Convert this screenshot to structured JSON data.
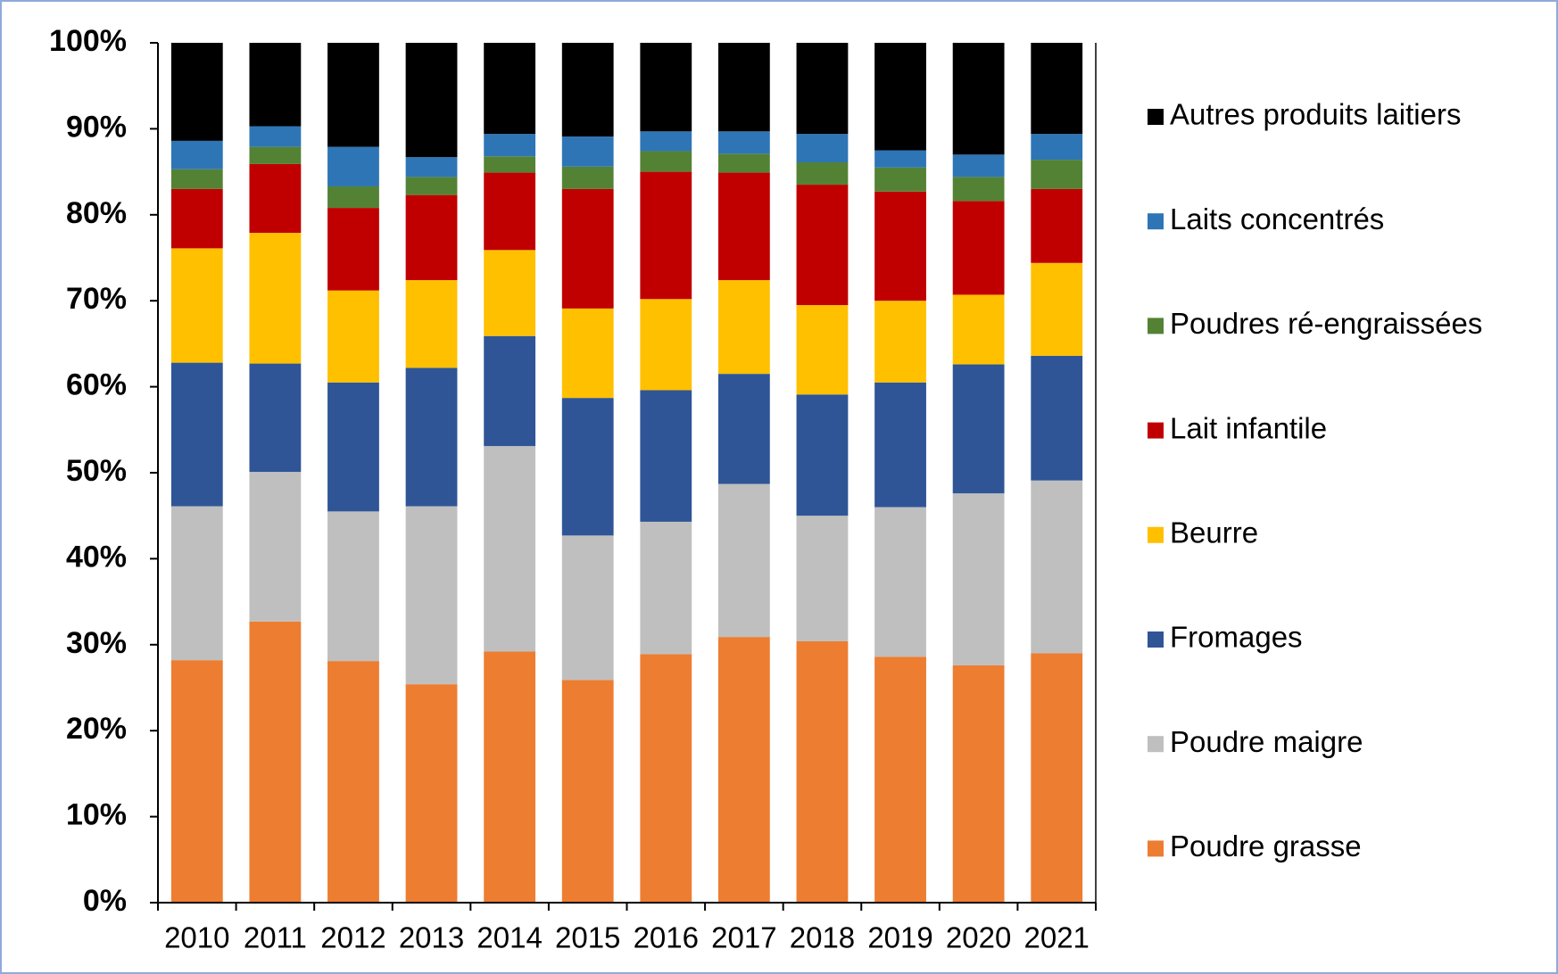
{
  "chart_data": {
    "type": "stacked_bar",
    "categories": [
      "2010",
      "2011",
      "2012",
      "2013",
      "2014",
      "2015",
      "2016",
      "2017",
      "2018",
      "2019",
      "2020",
      "2021"
    ],
    "series": [
      {
        "name": "Poudre grasse",
        "color": "#ed7d31",
        "values": [
          28.2,
          32.7,
          28.1,
          25.4,
          29.2,
          25.9,
          28.9,
          30.9,
          30.4,
          28.6,
          27.6,
          29.0
        ]
      },
      {
        "name": "Poudre maigre",
        "color": "#bfbfbf",
        "values": [
          17.9,
          17.4,
          17.4,
          20.7,
          23.9,
          16.8,
          15.4,
          17.8,
          14.6,
          17.4,
          20.0,
          20.1
        ]
      },
      {
        "name": "Fromages",
        "color": "#2f5597",
        "values": [
          16.7,
          12.6,
          15.0,
          16.1,
          12.8,
          16.0,
          15.3,
          12.8,
          14.1,
          14.5,
          15.0,
          14.5
        ]
      },
      {
        "name": "Beurre",
        "color": "#ffc000",
        "values": [
          13.3,
          15.2,
          10.7,
          10.2,
          10.0,
          10.4,
          10.6,
          10.9,
          10.4,
          9.5,
          8.1,
          10.8
        ]
      },
      {
        "name": "Lait infantile",
        "color": "#c00000",
        "values": [
          6.9,
          8.0,
          9.6,
          9.9,
          9.0,
          13.9,
          14.8,
          12.5,
          14.0,
          12.7,
          10.9,
          8.6
        ]
      },
      {
        "name": "Poudres ré-engraissées",
        "color": "#548235",
        "values": [
          2.3,
          2.0,
          2.5,
          2.1,
          1.9,
          2.6,
          2.4,
          2.2,
          2.6,
          2.8,
          2.8,
          3.4
        ]
      },
      {
        "name": "Laits concentrés",
        "color": "#2e75b6",
        "values": [
          3.3,
          2.4,
          4.6,
          2.3,
          2.6,
          3.5,
          2.3,
          2.6,
          3.3,
          2.0,
          2.6,
          3.0
        ]
      },
      {
        "name": "Autres produits laitiers",
        "color": "#000000",
        "values": [
          11.4,
          9.7,
          12.1,
          13.3,
          10.6,
          10.9,
          10.3,
          10.3,
          10.6,
          12.5,
          13.0,
          10.6
        ]
      }
    ],
    "ylim": [
      0,
      100
    ],
    "yticks": [
      {
        "value": 0,
        "label": "0%"
      },
      {
        "value": 10,
        "label": "10%"
      },
      {
        "value": 20,
        "label": "20%"
      },
      {
        "value": 30,
        "label": "30%"
      },
      {
        "value": 40,
        "label": "40%"
      },
      {
        "value": 50,
        "label": "50%"
      },
      {
        "value": 60,
        "label": "60%"
      },
      {
        "value": 70,
        "label": "70%"
      },
      {
        "value": 80,
        "label": "80%"
      },
      {
        "value": 90,
        "label": "90%"
      },
      {
        "value": 100,
        "label": "100%"
      }
    ],
    "legend": "right"
  }
}
